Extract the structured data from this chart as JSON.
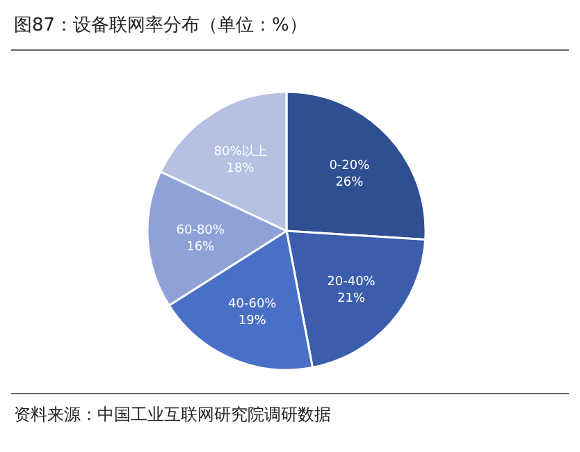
{
  "chart_data": {
    "type": "pie",
    "title": "图87：设备联网率分布（单位：%）",
    "categories": [
      "0-20%",
      "20-40%",
      "40-60%",
      "60-80%",
      "80%以上"
    ],
    "values": [
      26,
      21,
      19,
      16,
      18
    ],
    "value_labels": [
      "26%",
      "21%",
      "19%",
      "16%",
      "18%"
    ],
    "colors": [
      "#2f4f93",
      "#3b5dab",
      "#4a6fc6",
      "#8ea2d8",
      "#b5c0e2"
    ],
    "annotations": [
      "资料来源：中国工业互联网研究院调研数据"
    ]
  }
}
